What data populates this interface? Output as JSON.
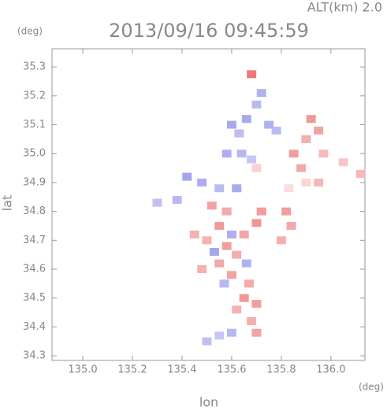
{
  "chart_data": {
    "type": "scatter",
    "title": "2013/09/16 09:45:59",
    "subtitle": "ALT(km) 2.0",
    "x_label": "lon",
    "y_label": "lat",
    "x_unit": "(deg)",
    "y_unit": "(deg)",
    "xlim": [
      134.876,
      136.137
    ],
    "ylim": [
      34.284,
      35.363
    ],
    "xticks": [
      {
        "value": 135,
        "label": "135.0"
      },
      135.2,
      135.4,
      135.6,
      135.8,
      {
        "value": 136,
        "label": "136.0"
      }
    ],
    "yticks": [
      34.3,
      34.4,
      34.5,
      34.6,
      34.7,
      34.8,
      34.9,
      {
        "value": 35,
        "label": "35.0"
      },
      35.1,
      35.2,
      35.3
    ],
    "x": [
      135.72,
      135.7,
      135.66,
      135.6,
      135.63,
      135.58,
      135.64,
      135.68,
      135.75,
      135.78,
      135.92,
      135.95,
      135.9,
      135.85,
      135.88,
      135.97,
      136.05,
      136.12,
      135.95,
      135.9,
      135.83,
      135.7,
      135.42,
      135.48,
      135.38,
      135.3,
      135.52,
      135.58,
      135.55,
      135.45,
      135.5,
      135.58,
      135.65,
      135.7,
      135.72,
      135.62,
      135.55,
      135.48,
      135.6,
      135.67,
      135.65,
      135.7,
      135.62,
      135.68,
      135.53,
      135.6,
      135.66,
      135.57,
      135.62,
      135.55,
      135.82,
      135.8,
      135.84,
      135.68,
      135.5,
      135.55,
      135.6,
      135.7
    ],
    "y": [
      35.21,
      35.17,
      35.12,
      35.1,
      35.07,
      35.0,
      35.0,
      34.98,
      35.1,
      35.08,
      35.12,
      35.08,
      35.05,
      35.0,
      34.95,
      35.0,
      34.97,
      34.93,
      34.9,
      34.9,
      34.88,
      34.95,
      34.92,
      34.9,
      34.84,
      34.83,
      34.82,
      34.8,
      34.75,
      34.72,
      34.7,
      34.68,
      34.72,
      34.76,
      34.8,
      34.65,
      34.62,
      34.6,
      34.58,
      34.55,
      34.5,
      34.48,
      34.46,
      34.42,
      34.66,
      34.72,
      34.62,
      34.55,
      34.88,
      34.88,
      34.8,
      34.7,
      34.75,
      35.275,
      34.35,
      34.37,
      34.38,
      34.38
    ],
    "colors": [
      "#a9a9f0",
      "#b3b3f2",
      "#a0a0ec",
      "#9f9fea",
      "#b7b7f3",
      "#a5a5ee",
      "#b0b0f0",
      "#c0c0f5",
      "#a8a8ef",
      "#b5b5f2",
      "#ee8c8c",
      "#f09a9a",
      "#f2a5a5",
      "#ee9494",
      "#f0a0a0",
      "#f5b5b5",
      "#f7c0c0",
      "#f5b0b0",
      "#f4b0b0",
      "#f9d0d0",
      "#fad8d8",
      "#f8cccc",
      "#9a9aea",
      "#a3a3ec",
      "#b0b0f0",
      "#b8b8f3",
      "#f09898",
      "#f2a0a0",
      "#ee9090",
      "#f3a8a8",
      "#f4acac",
      "#f09494",
      "#f29c9c",
      "#ee8a8a",
      "#f09090",
      "#f2a4a4",
      "#f0a0a0",
      "#f3aaaa",
      "#ee9a9a",
      "#f2a2a2",
      "#ee8e8e",
      "#f09696",
      "#f4aaaa",
      "#f3a6a6",
      "#9c9cea",
      "#a6a6ee",
      "#aaaaef",
      "#b0b0f0",
      "#a0a0ec",
      "#b4b4f2",
      "#f09494",
      "#f3a6a6",
      "#f2a0a0",
      "#ea6b6b",
      "#b8b8f3",
      "#c0c0f5",
      "#b0b0f0",
      "#f09a9a"
    ]
  }
}
